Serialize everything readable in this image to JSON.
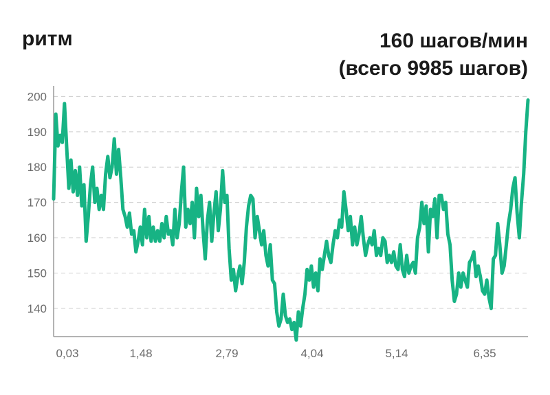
{
  "header": {
    "title": "ритм",
    "pace": "160 шагов/мин",
    "total": "(всего 9985 шагов)"
  },
  "colors": {
    "line": "#17b384",
    "grid": "#cccccc",
    "axis": "#9a9a9a",
    "tick_text": "#6b6b6b"
  },
  "chart_data": {
    "type": "line",
    "title": "",
    "xlabel": "",
    "ylabel": "",
    "ylim": [
      132,
      203
    ],
    "xlim": [
      0,
      7.1
    ],
    "yticks": [
      140,
      150,
      160,
      170,
      180,
      190,
      200
    ],
    "xticks": [
      "0,03",
      "1,48",
      "2,79",
      "4,04",
      "5,14",
      "6,35"
    ],
    "grid": true,
    "series": [
      {
        "values": [
          171,
          195,
          186,
          189,
          187,
          198,
          186,
          174,
          182,
          173,
          179,
          172,
          180,
          169,
          175,
          159,
          166,
          175,
          180,
          170,
          174,
          168,
          172,
          168,
          178,
          183,
          177,
          180,
          188,
          178,
          185,
          177,
          168,
          166,
          163,
          167,
          161,
          162,
          156,
          159,
          163,
          158,
          168,
          160,
          166,
          159,
          163,
          159,
          162,
          159,
          164,
          160,
          166,
          161,
          162,
          158,
          168,
          160,
          164,
          173,
          180,
          163,
          168,
          164,
          170,
          160,
          174,
          166,
          172,
          162,
          154,
          165,
          170,
          159,
          167,
          173,
          162,
          168,
          179,
          170,
          172,
          157,
          148,
          151,
          145,
          149,
          152,
          147,
          153,
          163,
          169,
          172,
          171,
          160,
          166,
          162,
          158,
          162,
          155,
          152,
          158,
          148,
          147,
          139,
          135,
          137,
          144,
          138,
          136,
          137,
          134,
          136,
          131,
          139,
          135,
          140,
          144,
          151,
          148,
          152,
          146,
          150,
          145,
          154,
          151,
          155,
          159,
          155,
          153,
          158,
          162,
          160,
          165,
          163,
          173,
          168,
          162,
          166,
          158,
          163,
          158,
          161,
          166,
          160,
          155,
          158,
          160,
          158,
          162,
          155,
          157,
          155,
          160,
          159,
          153,
          155,
          153,
          156,
          152,
          151,
          158,
          151,
          149,
          155,
          150,
          152,
          153,
          150,
          160,
          163,
          170,
          164,
          169,
          156,
          168,
          166,
          171,
          160,
          172,
          172,
          168,
          170,
          161,
          158,
          148,
          142,
          144,
          150,
          146,
          150,
          148,
          146,
          153,
          154,
          156,
          149,
          152,
          149,
          145,
          144,
          148,
          143,
          140,
          154,
          155,
          164,
          158,
          150,
          152,
          158,
          164,
          168,
          174,
          177,
          167,
          160,
          170,
          178,
          190,
          199
        ]
      }
    ]
  }
}
